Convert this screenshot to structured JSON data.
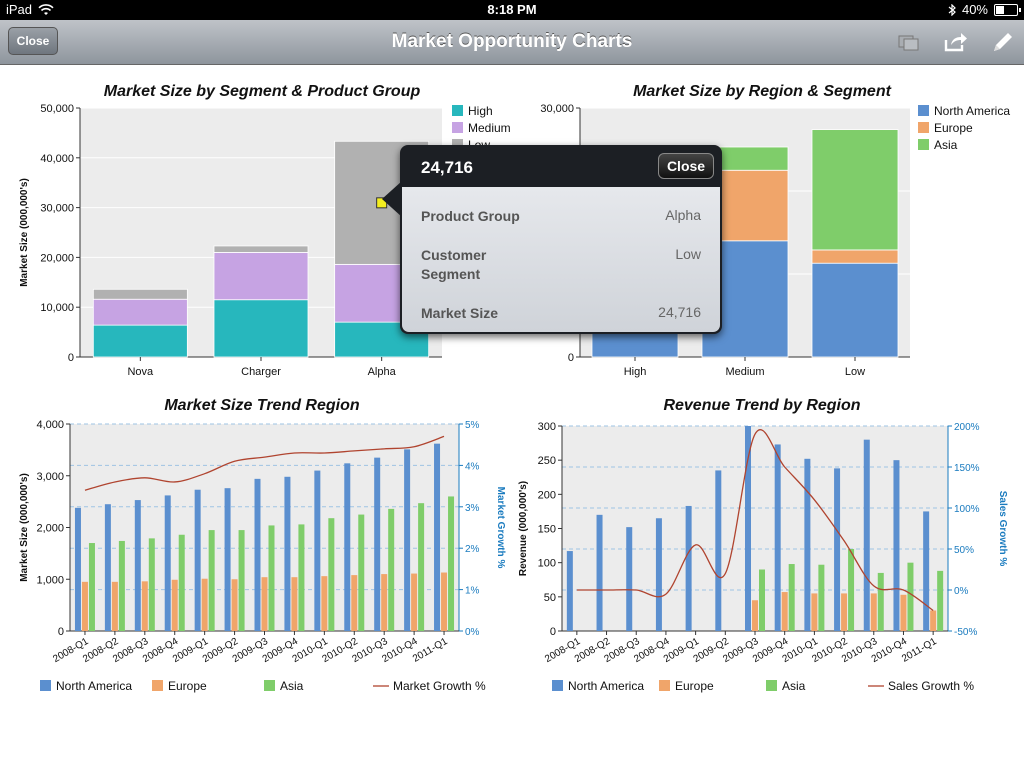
{
  "status_bar": {
    "device": "iPad",
    "time": "8:18 PM",
    "battery": "40%",
    "battery_level": 0.4
  },
  "nav": {
    "close_label": "Close",
    "title": "Market Opportunity Charts",
    "icons": [
      "windows-icon",
      "share-icon",
      "pencil-icon"
    ]
  },
  "colors": {
    "teal": "#27b7bd",
    "lavender": "#c6a3e3",
    "gray": "#b1b1b1",
    "north_america": "#5b8fcf",
    "europe": "#f0a56a",
    "asia": "#7fcd6a",
    "growth_line": "#b0442f",
    "axis_blue": "#1a7bbf"
  },
  "chart_data": [
    {
      "type": "bar",
      "stacked": true,
      "title": "Market Size by Segment & Product Group",
      "ylabel": "Market Size (000,000's)",
      "ylim": [
        0,
        50000
      ],
      "yticks": [
        "0",
        "10,000",
        "20,000",
        "30,000",
        "40,000",
        "50,000"
      ],
      "categories": [
        "Nova",
        "Charger",
        "Alpha"
      ],
      "series": [
        {
          "name": "High",
          "values": [
            6400,
            11500,
            7000
          ]
        },
        {
          "name": "Medium",
          "values": [
            5200,
            9500,
            11600
          ]
        },
        {
          "name": "Low",
          "values": [
            2000,
            1300,
            24716
          ]
        }
      ],
      "legend": [
        "High",
        "Medium",
        "Low"
      ],
      "legend_position": "top-right",
      "selected": {
        "category": "Alpha",
        "series": "Low"
      }
    },
    {
      "type": "bar",
      "stacked": true,
      "title": "Market Size by Region & Segment",
      "ylim": [
        0,
        30000
      ],
      "yticks": [
        "0",
        "10,000",
        "20,000",
        "30,000"
      ],
      "categories": [
        "High",
        "Medium",
        "Low"
      ],
      "series": [
        {
          "name": "North America",
          "values": [
            5200,
            14000,
            11300
          ]
        },
        {
          "name": "Europe",
          "values": [
            0,
            8500,
            1600
          ]
        },
        {
          "name": "Asia",
          "values": [
            0,
            2800,
            14500
          ]
        }
      ],
      "legend": [
        "North America",
        "Europe",
        "Asia"
      ],
      "legend_position": "top-right"
    },
    {
      "type": "bar",
      "title": "Market Size Trend Region",
      "ylabel": "Market Size (000,000's)",
      "y2label": "Market Growth %",
      "ylim": [
        0,
        4000
      ],
      "y2lim": [
        0,
        5
      ],
      "yticks": [
        "0",
        "1,000",
        "2,000",
        "3,000",
        "4,000"
      ],
      "y2ticks": [
        "0%",
        "1%",
        "2%",
        "3%",
        "4%",
        "5%"
      ],
      "categories": [
        "2008-Q1",
        "2008-Q2",
        "2008-Q3",
        "2008-Q4",
        "2009-Q1",
        "2009-Q2",
        "2009-Q3",
        "2009-Q4",
        "2010-Q1",
        "2010-Q2",
        "2010-Q3",
        "2010-Q4",
        "2011-Q1"
      ],
      "series": [
        {
          "name": "North America",
          "values": [
            2380,
            2450,
            2530,
            2620,
            2730,
            2760,
            2940,
            2980,
            3100,
            3240,
            3350,
            3510,
            3620
          ]
        },
        {
          "name": "Europe",
          "values": [
            950,
            950,
            960,
            990,
            1010,
            1000,
            1040,
            1040,
            1060,
            1080,
            1100,
            1110,
            1130
          ]
        },
        {
          "name": "Asia",
          "values": [
            1700,
            1740,
            1790,
            1860,
            1950,
            1950,
            2040,
            2060,
            2180,
            2250,
            2360,
            2470,
            2600
          ]
        }
      ],
      "line": {
        "name": "Market Growth %",
        "values": [
          3.4,
          3.6,
          3.7,
          3.6,
          3.8,
          4.1,
          4.2,
          4.3,
          4.3,
          4.35,
          4.4,
          4.45,
          4.7
        ]
      },
      "legend": [
        "North America",
        "Europe",
        "Asia",
        "Market Growth %"
      ],
      "legend_position": "bottom"
    },
    {
      "type": "bar",
      "title": "Revenue Trend by Region",
      "ylabel": "Revenue (000,000's)",
      "y2label": "Sales Growth %",
      "ylim": [
        0,
        300
      ],
      "y2lim": [
        -50,
        200
      ],
      "yticks": [
        "0",
        "50",
        "100",
        "150",
        "200",
        "250",
        "300"
      ],
      "y2ticks": [
        "-50%",
        "0%",
        "50%",
        "100%",
        "150%",
        "200%"
      ],
      "categories": [
        "2008-Q1",
        "2008-Q2",
        "2008-Q3",
        "2008-Q4",
        "2009-Q1",
        "2009-Q2",
        "2009-Q3",
        "2009-Q4",
        "2010-Q1",
        "2010-Q2",
        "2010-Q3",
        "2010-Q4",
        "2011-Q1"
      ],
      "series": [
        {
          "name": "North America",
          "values": [
            117,
            170,
            152,
            165,
            183,
            235,
            300,
            273,
            252,
            238,
            280,
            250,
            175
          ]
        },
        {
          "name": "Europe",
          "values": [
            0,
            0,
            0,
            0,
            0,
            0,
            45,
            57,
            55,
            55,
            55,
            53,
            30
          ]
        },
        {
          "name": "Asia",
          "values": [
            0,
            0,
            0,
            0,
            0,
            0,
            90,
            98,
            97,
            120,
            85,
            100,
            88
          ]
        }
      ],
      "line": {
        "name": "Sales Growth %",
        "values": [
          0,
          0,
          0,
          -5,
          55,
          20,
          190,
          150,
          110,
          60,
          5,
          0,
          -25
        ]
      },
      "legend": [
        "North America",
        "Europe",
        "Asia",
        "Sales Growth %"
      ],
      "legend_position": "bottom"
    }
  ],
  "popup": {
    "value": "24,716",
    "close_label": "Close",
    "rows": [
      {
        "key": "Product Group",
        "value": "Alpha"
      },
      {
        "key": "Customer Segment",
        "value": "Low"
      },
      {
        "key": "Market Size",
        "value": "24,716"
      }
    ]
  }
}
